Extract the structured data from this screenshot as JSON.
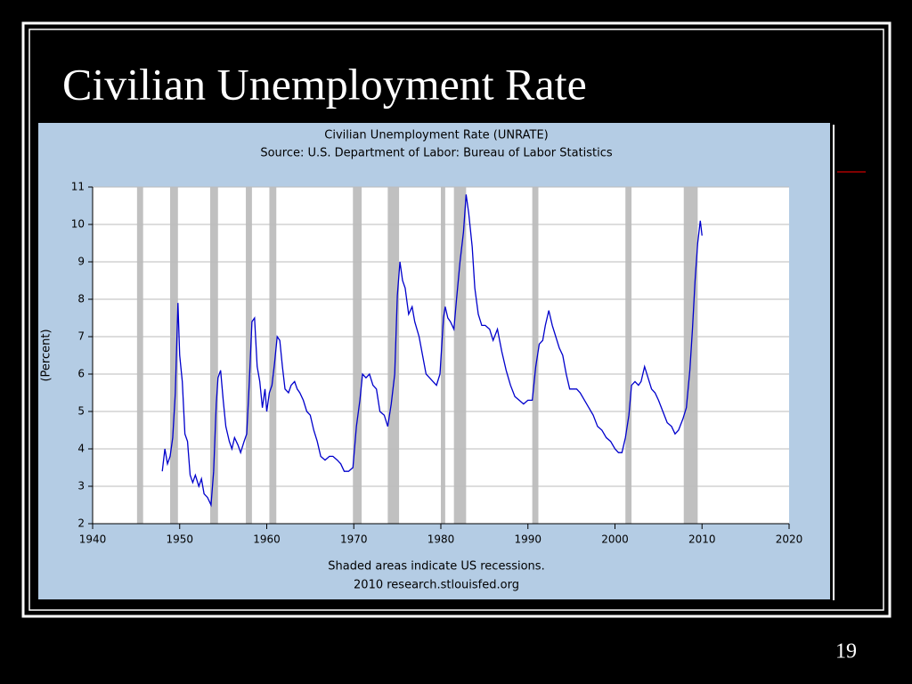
{
  "slide": {
    "title": "Civilian Unemployment Rate",
    "page_number": "19"
  },
  "chart_data": {
    "type": "line",
    "title": "Civilian Unemployment Rate (UNRATE)",
    "subtitle": "Source: U.S. Department of Labor: Bureau of Labor Statistics",
    "ylabel": "(Percent)",
    "notes": [
      "Shaded areas indicate US recessions.",
      "2010 research.stlouisfed.org"
    ],
    "xlim": [
      1940,
      2020
    ],
    "xticks": [
      1940,
      1950,
      1960,
      1970,
      1980,
      1990,
      2000,
      2010,
      2020
    ],
    "ylim": [
      2,
      11
    ],
    "yticks": [
      2,
      3,
      4,
      5,
      6,
      7,
      8,
      9,
      10,
      11
    ],
    "grid": true,
    "recession_color": "#c0c0c0",
    "recessions": [
      [
        1945.1,
        1945.8
      ],
      [
        1948.9,
        1949.8
      ],
      [
        1953.5,
        1954.4
      ],
      [
        1957.6,
        1958.3
      ],
      [
        1960.3,
        1961.1
      ],
      [
        1969.9,
        1970.9
      ],
      [
        1973.9,
        1975.2
      ],
      [
        1980.0,
        1980.5
      ],
      [
        1981.5,
        1982.9
      ],
      [
        1990.5,
        1991.2
      ],
      [
        2001.2,
        2001.9
      ],
      [
        2007.9,
        2009.5
      ]
    ],
    "x": [
      1948.0,
      1948.3,
      1948.6,
      1948.9,
      1949.2,
      1949.5,
      1949.8,
      1950.0,
      1950.3,
      1950.6,
      1950.9,
      1951.2,
      1951.5,
      1951.8,
      1952.2,
      1952.5,
      1952.8,
      1953.2,
      1953.6,
      1953.9,
      1954.2,
      1954.4,
      1954.7,
      1955.0,
      1955.3,
      1955.7,
      1956.0,
      1956.3,
      1956.7,
      1957.0,
      1957.4,
      1957.7,
      1958.0,
      1958.3,
      1958.6,
      1958.9,
      1959.2,
      1959.5,
      1959.8,
      1960.0,
      1960.3,
      1960.6,
      1960.9,
      1961.2,
      1961.5,
      1961.8,
      1962.1,
      1962.5,
      1962.8,
      1963.2,
      1963.5,
      1963.8,
      1964.2,
      1964.6,
      1965.0,
      1965.4,
      1965.8,
      1966.2,
      1966.7,
      1967.2,
      1967.6,
      1968.1,
      1968.5,
      1968.9,
      1969.4,
      1969.9,
      1970.3,
      1970.7,
      1971.0,
      1971.4,
      1971.8,
      1972.2,
      1972.6,
      1973.0,
      1973.5,
      1973.9,
      1974.3,
      1974.7,
      1975.0,
      1975.3,
      1975.6,
      1975.9,
      1976.3,
      1976.7,
      1977.0,
      1977.5,
      1977.9,
      1978.3,
      1978.7,
      1979.1,
      1979.5,
      1979.9,
      1980.3,
      1980.5,
      1980.8,
      1981.1,
      1981.5,
      1981.8,
      1982.2,
      1982.6,
      1982.9,
      1983.2,
      1983.6,
      1983.9,
      1984.3,
      1984.7,
      1985.1,
      1985.6,
      1986.0,
      1986.5,
      1987.0,
      1987.5,
      1988.0,
      1988.5,
      1989.0,
      1989.5,
      1990.0,
      1990.5,
      1990.9,
      1991.3,
      1991.7,
      1992.0,
      1992.4,
      1992.8,
      1993.2,
      1993.6,
      1994.0,
      1994.4,
      1994.8,
      1995.2,
      1995.6,
      1996.0,
      1996.5,
      1997.0,
      1997.5,
      1998.0,
      1998.5,
      1999.0,
      1999.5,
      2000.0,
      2000.4,
      2000.8,
      2001.2,
      2001.6,
      2001.9,
      2002.3,
      2002.7,
      2003.0,
      2003.4,
      2003.8,
      2004.2,
      2004.6,
      2005.0,
      2005.5,
      2006.0,
      2006.5,
      2006.9,
      2007.3,
      2007.8,
      2008.2,
      2008.6,
      2008.9,
      2009.2,
      2009.5,
      2009.8,
      2010.0
    ],
    "series": [
      {
        "name": "UNRATE",
        "color": "#0000cc",
        "values": [
          3.4,
          4.0,
          3.6,
          3.8,
          4.3,
          5.5,
          7.9,
          6.5,
          5.8,
          4.4,
          4.2,
          3.3,
          3.1,
          3.3,
          3.0,
          3.2,
          2.8,
          2.7,
          2.5,
          3.4,
          5.2,
          5.9,
          6.1,
          5.3,
          4.6,
          4.2,
          4.0,
          4.3,
          4.1,
          3.9,
          4.2,
          4.4,
          5.8,
          7.4,
          7.5,
          6.2,
          5.8,
          5.1,
          5.6,
          5.0,
          5.5,
          5.7,
          6.3,
          7.0,
          6.9,
          6.2,
          5.6,
          5.5,
          5.7,
          5.8,
          5.6,
          5.5,
          5.3,
          5.0,
          4.9,
          4.5,
          4.2,
          3.8,
          3.7,
          3.8,
          3.8,
          3.7,
          3.6,
          3.4,
          3.4,
          3.5,
          4.6,
          5.3,
          6.0,
          5.9,
          6.0,
          5.7,
          5.6,
          5.0,
          4.9,
          4.6,
          5.2,
          6.0,
          8.1,
          9.0,
          8.5,
          8.3,
          7.6,
          7.8,
          7.4,
          7.0,
          6.5,
          6.0,
          5.9,
          5.8,
          5.7,
          6.0,
          7.5,
          7.8,
          7.5,
          7.4,
          7.2,
          8.0,
          9.0,
          9.8,
          10.8,
          10.3,
          9.4,
          8.3,
          7.6,
          7.3,
          7.3,
          7.2,
          6.9,
          7.2,
          6.6,
          6.1,
          5.7,
          5.4,
          5.3,
          5.2,
          5.3,
          5.3,
          6.2,
          6.8,
          6.9,
          7.3,
          7.7,
          7.3,
          7.0,
          6.7,
          6.5,
          6.0,
          5.6,
          5.6,
          5.6,
          5.5,
          5.3,
          5.1,
          4.9,
          4.6,
          4.5,
          4.3,
          4.2,
          4.0,
          3.9,
          3.9,
          4.3,
          4.9,
          5.7,
          5.8,
          5.7,
          5.8,
          6.2,
          5.9,
          5.6,
          5.5,
          5.3,
          5.0,
          4.7,
          4.6,
          4.4,
          4.5,
          4.8,
          5.1,
          6.1,
          7.2,
          8.5,
          9.5,
          10.1,
          9.7
        ]
      }
    ]
  }
}
